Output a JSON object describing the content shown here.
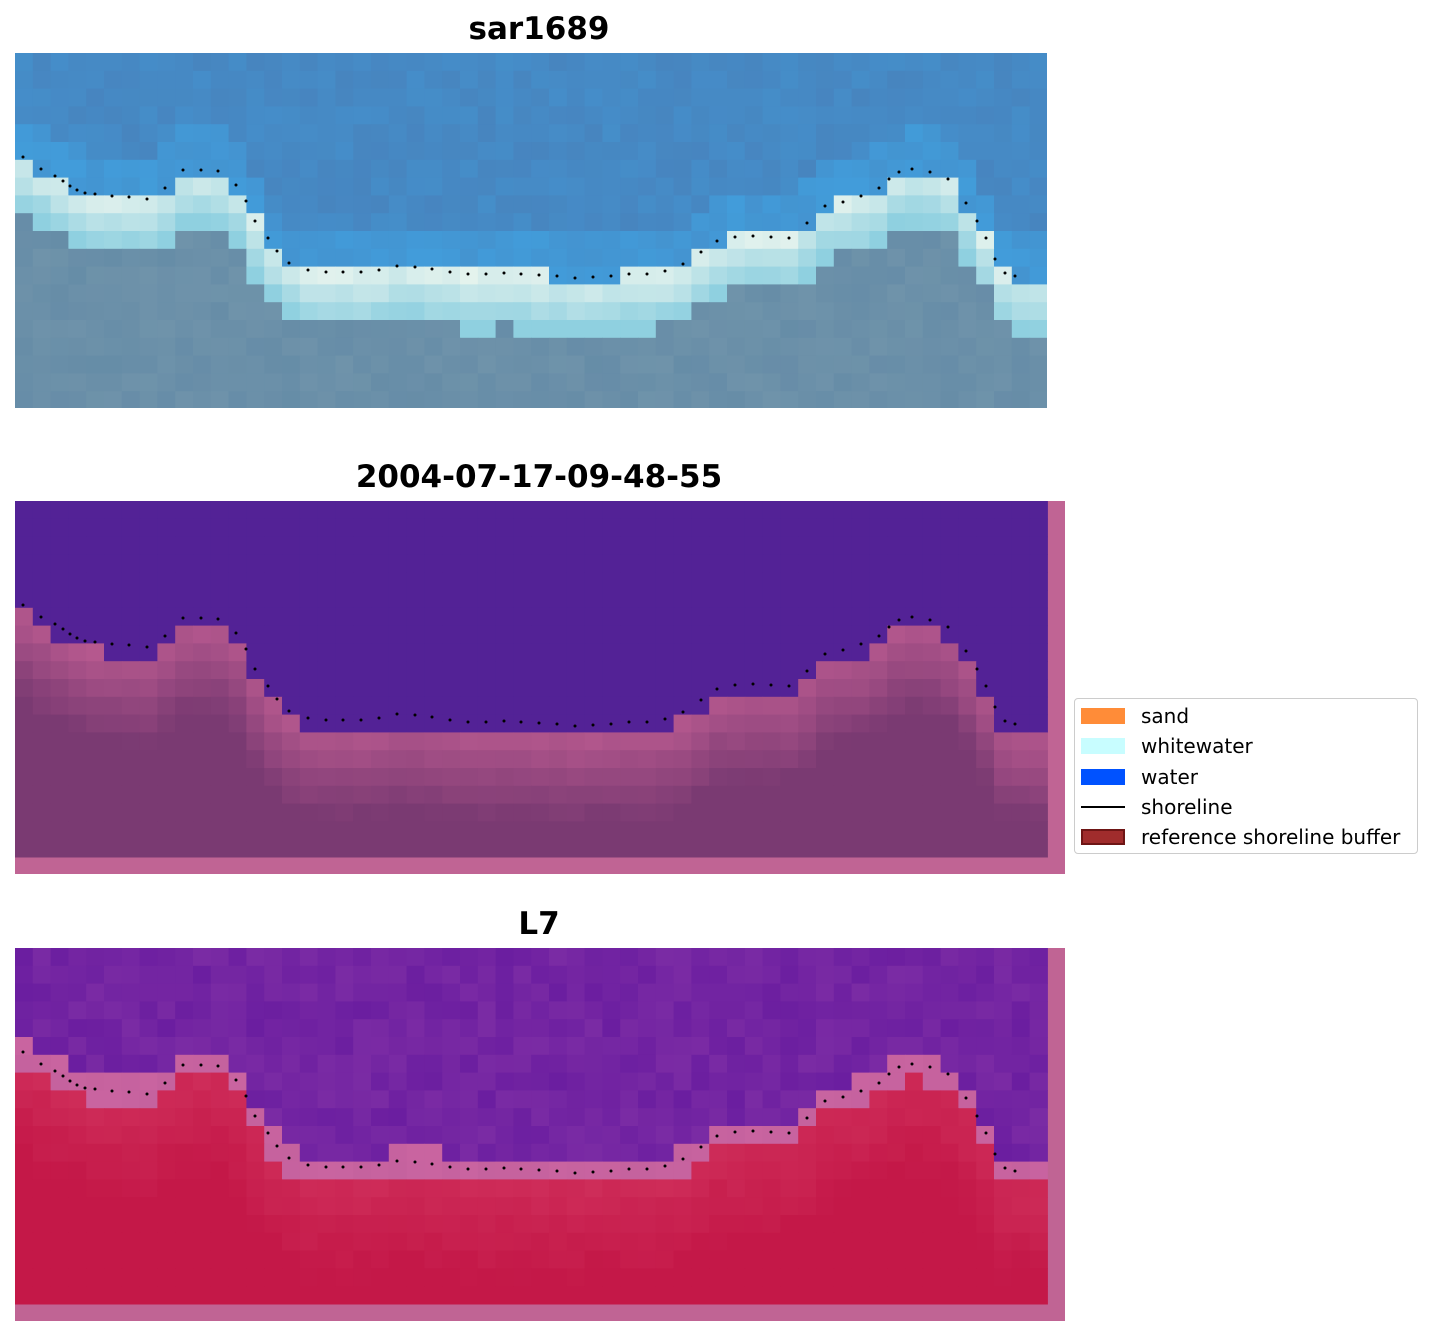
{
  "panels": [
    {
      "title": "sar1689",
      "style": "rgb"
    },
    {
      "title": "2004-07-17-09-48-55",
      "style": "classified"
    },
    {
      "title": "L7",
      "style": "index"
    }
  ],
  "legend": {
    "items": [
      {
        "label": "sand",
        "kind": "patch",
        "color": "#ff8c38"
      },
      {
        "label": "whitewater",
        "kind": "patch",
        "color": "#c8fdff"
      },
      {
        "label": "water",
        "kind": "patch",
        "color": "#0052ff"
      },
      {
        "label": "shoreline",
        "kind": "line",
        "color": "#000000"
      },
      {
        "label": "reference shoreline buffer",
        "kind": "patch",
        "color": "#a02c2c",
        "edge": "#6e1515"
      }
    ]
  },
  "colors": {
    "rgb_water_deep": "#4a78b0",
    "rgb_water_shallow": "#3fa8e8",
    "rgb_surf": "#e8f4ee",
    "rgb_land": "#6f93aa",
    "class_water": "#532296",
    "class_land": "#7a3a72",
    "class_land_light": "#b5588e",
    "buffer_edge": "#c06494",
    "index_water": "#6b1ea0",
    "index_land": "#c41848",
    "index_buffer": "#c964a0"
  }
}
